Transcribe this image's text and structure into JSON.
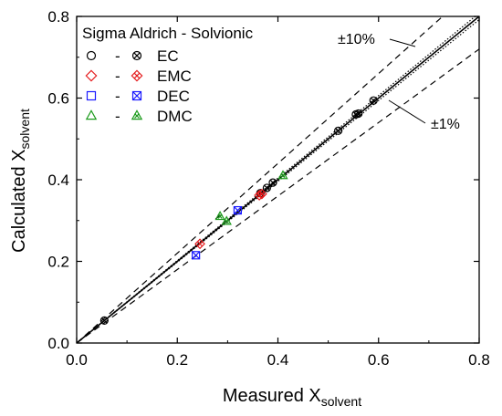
{
  "chart_data": {
    "type": "scatter",
    "xlabel": "Measured X",
    "xlabel_sub": "solvent",
    "ylabel": "Calculated X",
    "ylabel_sub": "solvent",
    "xlim": [
      0.0,
      0.8
    ],
    "ylim": [
      0.0,
      0.8
    ],
    "x_ticks": [
      "0.0",
      "0.2",
      "0.4",
      "0.6",
      "0.8"
    ],
    "y_ticks": [
      "0.0",
      "0.2",
      "0.4",
      "0.6",
      "0.8"
    ],
    "tick_values": [
      0.0,
      0.2,
      0.4,
      0.6,
      0.8
    ],
    "grid": false,
    "legend": {
      "title": "Sigma Aldrich - Solvionic",
      "placement": "top-left",
      "separator": "-",
      "entries": [
        {
          "label": "EC",
          "color": "#000000",
          "open_marker": "circle",
          "filled_marker": "crossed-circle"
        },
        {
          "label": "EMC",
          "color": "#e41a1c",
          "open_marker": "diamond",
          "filled_marker": "crossed-diamond"
        },
        {
          "label": "DEC",
          "color": "#1a1aff",
          "open_marker": "square",
          "filled_marker": "crossed-square"
        },
        {
          "label": "DMC",
          "color": "#1a9a1a",
          "open_marker": "triangle",
          "filled_marker": "crossed-triangle"
        }
      ]
    },
    "annotations": [
      {
        "text": "±10%",
        "points_to_slope": 1.1
      },
      {
        "text": "±1%",
        "points_to_slope": 0.99
      }
    ],
    "reference_lines": [
      {
        "slope": 1.0,
        "style": "solid"
      },
      {
        "slope": 1.01,
        "style": "dotted"
      },
      {
        "slope": 0.99,
        "style": "dotted"
      },
      {
        "slope": 1.1,
        "style": "dashed"
      },
      {
        "slope": 0.9,
        "style": "dashed"
      }
    ],
    "series": [
      {
        "name": "EC",
        "color": "#000000",
        "marker": "circle",
        "points": [
          [
            0.055,
            0.055
          ],
          [
            0.365,
            0.367
          ],
          [
            0.378,
            0.38
          ],
          [
            0.39,
            0.393
          ],
          [
            0.52,
            0.52
          ],
          [
            0.555,
            0.56
          ],
          [
            0.56,
            0.562
          ],
          [
            0.59,
            0.594
          ]
        ]
      },
      {
        "name": "EMC",
        "color": "#e41a1c",
        "marker": "diamond",
        "points": [
          [
            0.245,
            0.243
          ],
          [
            0.363,
            0.362
          ],
          [
            0.368,
            0.365
          ]
        ]
      },
      {
        "name": "DEC",
        "color": "#1a1aff",
        "marker": "square",
        "points": [
          [
            0.237,
            0.215
          ],
          [
            0.32,
            0.325
          ]
        ]
      },
      {
        "name": "DMC",
        "color": "#1a9a1a",
        "marker": "triangle",
        "points": [
          [
            0.285,
            0.31
          ],
          [
            0.298,
            0.298
          ],
          [
            0.41,
            0.41
          ]
        ]
      }
    ]
  }
}
